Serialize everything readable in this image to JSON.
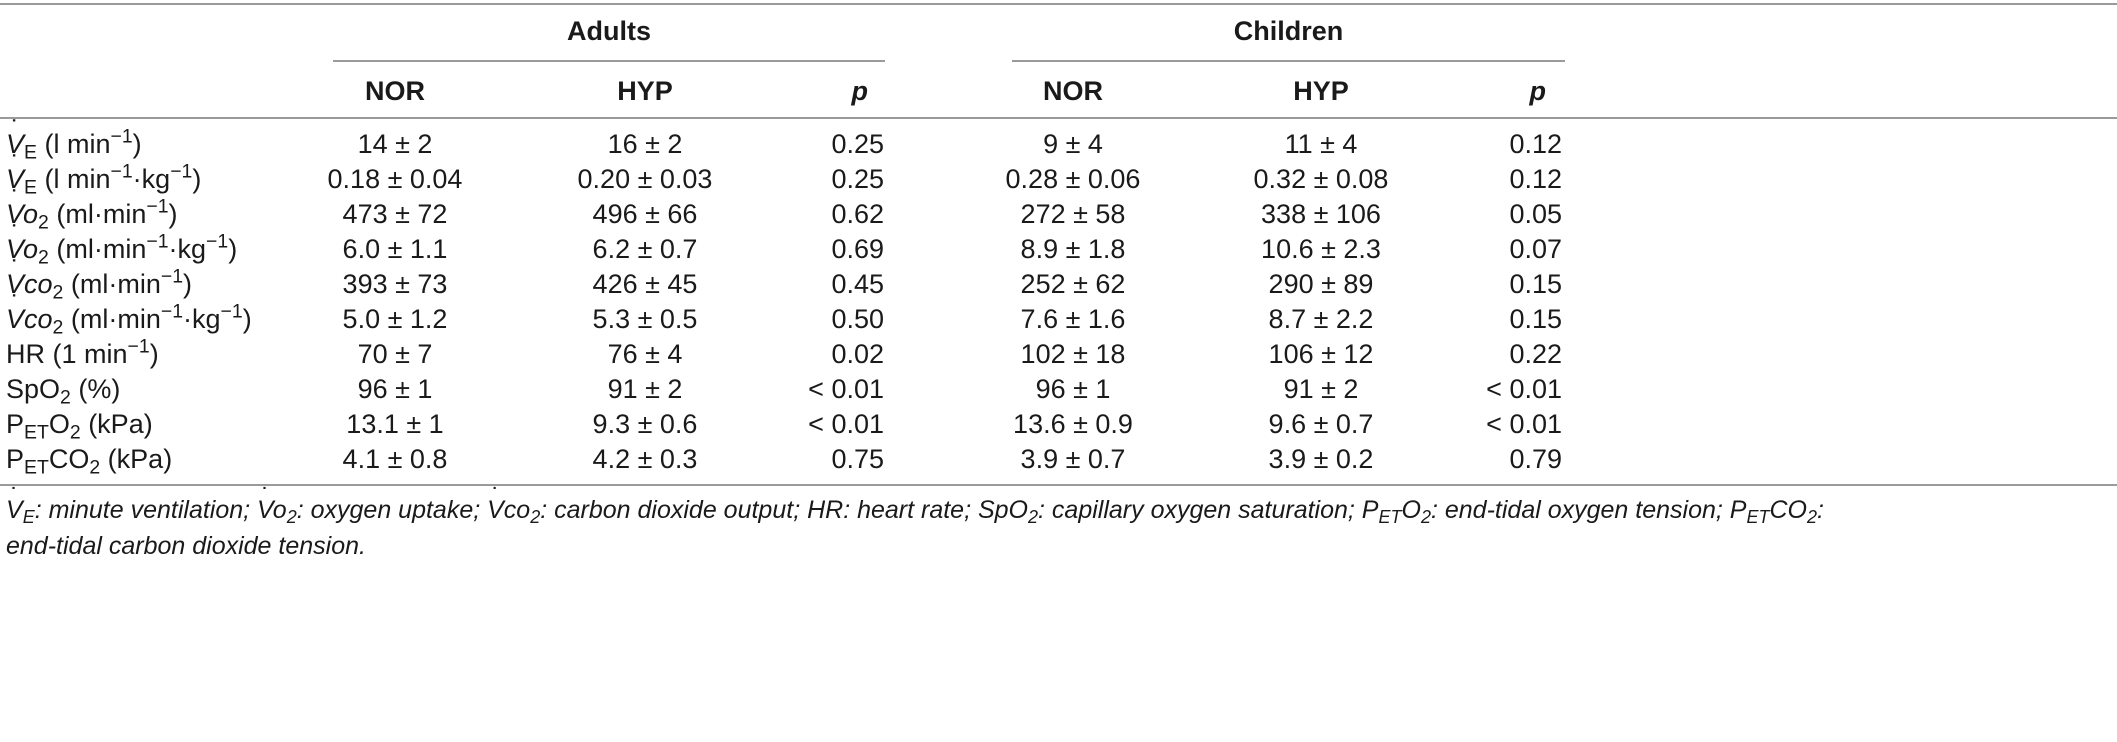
{
  "table": {
    "groups": [
      "Adults",
      "Children"
    ],
    "columns": [
      "NOR",
      "HYP",
      "p",
      "NOR",
      "HYP",
      "p"
    ],
    "rows": [
      {
        "label_sym": "V",
        "label_sub": "E",
        "label_unit": "(l min",
        "label_sup": "−1",
        "label_tail": ")",
        "values": [
          "14 ± 2",
          "16 ± 2",
          "0.25",
          "9 ± 4",
          "11 ± 4",
          "0.12"
        ]
      },
      {
        "label_sym": "V",
        "label_sub": "E",
        "label_unit": "(l min",
        "label_sup": "−1",
        "label_tail": "·kg",
        "label_sup2": "−1",
        "label_tail2": ")",
        "values": [
          "0.18 ± 0.04",
          "0.20 ± 0.03",
          "0.25",
          "0.28 ± 0.06",
          "0.32 ± 0.08",
          "0.12"
        ]
      },
      {
        "label_sym": "Vo",
        "label_sub": "2",
        "label_unit": "(ml·min",
        "label_sup": "−1",
        "label_tail": ")",
        "values": [
          "473 ± 72",
          "496 ± 66",
          "0.62",
          "272 ± 58",
          "338 ± 106",
          "0.05"
        ]
      },
      {
        "label_sym": "Vo",
        "label_sub": "2",
        "label_unit": "(ml·min",
        "label_sup": "−1",
        "label_tail": "·kg",
        "label_sup2": "−1",
        "label_tail2": ")",
        "values": [
          "6.0 ± 1.1",
          "6.2 ± 0.7",
          "0.69",
          "8.9 ± 1.8",
          "10.6 ± 2.3",
          "0.07"
        ]
      },
      {
        "label_sym": "Vco",
        "label_sub": "2",
        "label_unit": "(ml·min",
        "label_sup": "−1",
        "label_tail": ")",
        "values": [
          "393 ± 73",
          "426 ± 45",
          "0.45",
          "252 ± 62",
          "290 ± 89",
          "0.15"
        ]
      },
      {
        "label_sym": "Vco",
        "label_sub": "2",
        "label_unit": "(ml·min",
        "label_sup": "−1",
        "label_tail": "·kg",
        "label_sup2": "−1",
        "label_tail2": ")",
        "values": [
          "5.0 ± 1.2",
          "5.3 ± 0.5",
          "0.50",
          "7.6 ± 1.6",
          "8.7 ± 2.2",
          "0.15"
        ]
      },
      {
        "label_plain": "HR (1 min",
        "label_sup": "−1",
        "label_tail": ")",
        "values": [
          "70 ± 7",
          "76 ± 4",
          "0.02",
          "102 ± 18",
          "106 ± 12",
          "0.22"
        ]
      },
      {
        "label_plain": "SpO",
        "label_sub": "2",
        "label_tail": " (%)",
        "values": [
          "96 ± 1",
          "91 ± 2",
          "< 0.01",
          "96 ± 1",
          "91 ± 2",
          "< 0.01"
        ]
      },
      {
        "label_plain": "P",
        "label_sub": "ET",
        "label_mid": "O",
        "label_sub2": "2",
        "label_tail": " (kPa)",
        "values": [
          "13.1 ± 1",
          "9.3 ± 0.6",
          "< 0.01",
          "13.6 ± 0.9",
          "9.6 ± 0.7",
          "< 0.01"
        ]
      },
      {
        "label_plain": "P",
        "label_sub": "ET",
        "label_mid": "CO",
        "label_sub2": "2",
        "label_tail": " (kPa)",
        "values": [
          "4.1 ± 0.8",
          "4.2 ± 0.3",
          "0.75",
          "3.9 ± 0.7",
          "3.9 ± 0.2",
          "0.79"
        ]
      }
    ]
  },
  "footnote": {
    "p1": "V",
    "p1s": "E",
    "p1t": ": minute ventilation; ",
    "p2": "Vo",
    "p2s": "2",
    "p2t": ": oxygen uptake; ",
    "p3": "Vco",
    "p3s": "2",
    "p3t": ": carbon dioxide output; HR: heart rate; SpO",
    "p3s2": "2",
    "p3t2": ": capillary oxygen saturation; P",
    "p4s": "ET",
    "p4m": "O",
    "p4s2": "2",
    "p4t": ": end-tidal oxygen tension; P",
    "p5s": "ET",
    "p5m": "CO",
    "p5s2": "2",
    "p5t": ":",
    "line2": "end-tidal carbon dioxide tension."
  }
}
